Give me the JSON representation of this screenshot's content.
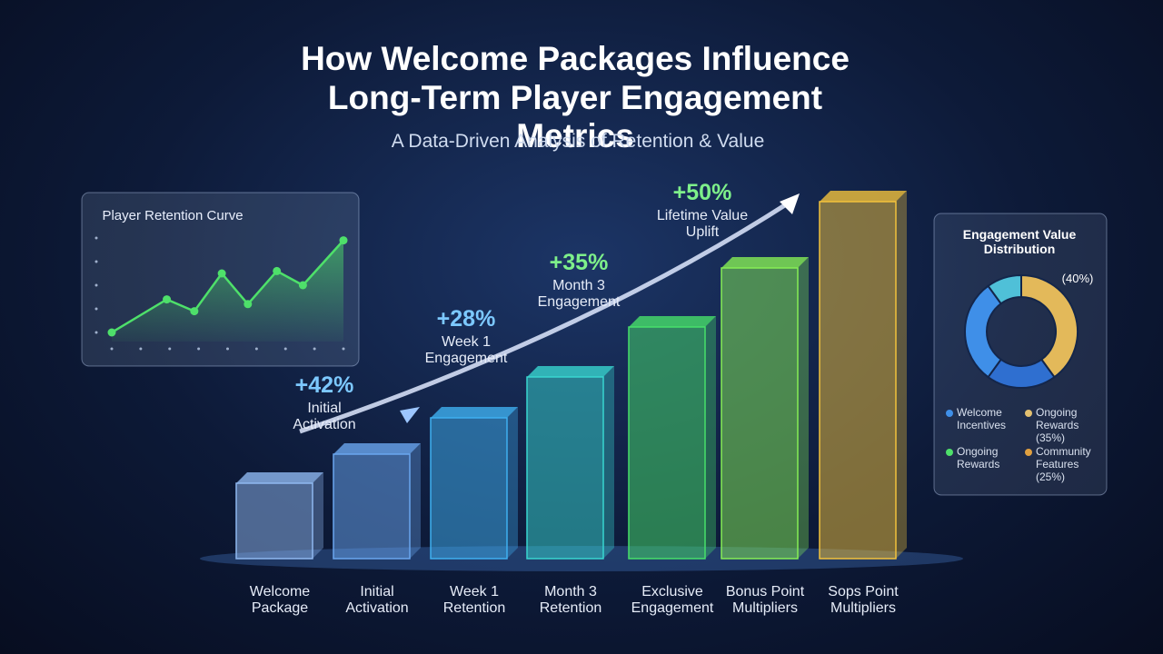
{
  "title": "How Welcome Packages Influence\nLong-Term Player Engagement Metrics",
  "subtitle": "A Data-Driven Analysis of Retention & Value",
  "chart_data": [
    {
      "type": "line",
      "title": "Player Retention Curve",
      "x": [
        0,
        1.9,
        2.85,
        3.8,
        4.7,
        5.7,
        6.6,
        8.0
      ],
      "values": [
        0,
        1.4,
        0.9,
        2.5,
        1.2,
        2.6,
        2.0,
        3.9
      ],
      "xlim": [
        0,
        8
      ],
      "ylim": [
        0,
        4
      ],
      "xticks": [
        0,
        1,
        2,
        3,
        4,
        5,
        6,
        7,
        8
      ],
      "yticks": [
        0,
        1,
        2,
        3,
        4
      ],
      "color": "#4ee06a"
    },
    {
      "type": "bar",
      "categories": [
        "Welcome\nPackage",
        "Initial\nActivation",
        "Week 1\nRetention",
        "Month 3\nRetention",
        "Exclusive\nEngagement",
        "Bonus Point\nMultipliers",
        "Sops Point\nMultipliers"
      ],
      "values": [
        83,
        115,
        155,
        200,
        255,
        320,
        393
      ],
      "colors": [
        "#8fb8f0",
        "#6aa6ef",
        "#3fb0f0",
        "#38d6d0",
        "#47e06a",
        "#86ee55",
        "#f2c23c"
      ],
      "annotations": [
        {
          "value": "+42%",
          "label": "Initial\nActivation"
        },
        {
          "value": "+28%",
          "label": "Week 1\nEngagement"
        },
        {
          "value": "+35%",
          "label": "Month 3\nEngagement"
        },
        {
          "value": "+50%",
          "label": "Lifetime Value\nUplift"
        }
      ]
    },
    {
      "type": "pie",
      "title": "Engagement Value\nDistribution",
      "callout": "(40%)",
      "values": [
        40,
        20,
        30,
        10
      ],
      "colors": [
        "#e3b95a",
        "#2f6fd0",
        "#3f8fe8",
        "#4fc0d8"
      ],
      "legend": [
        {
          "label": "Welcome\nIncentives",
          "color": "#3f8fe8"
        },
        {
          "label": "Ongoing\nRewards\n(35%)",
          "color": "#e3c070"
        },
        {
          "label": "Ongoing\nRewards",
          "color": "#4ee06a"
        },
        {
          "label": "Community\nFeatures\n(25%)",
          "color": "#e0a040"
        }
      ]
    }
  ]
}
